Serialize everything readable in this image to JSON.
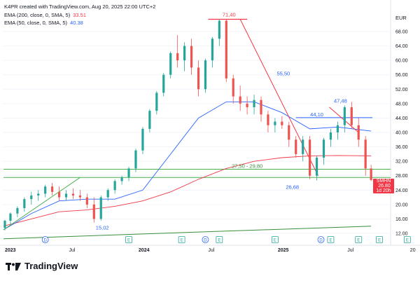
{
  "header": {
    "credit": "K4PR created with TradingView.com, Aug 20, 2025 22:00 UTC+2",
    "ema200_label": "EMA (200, close, 0, SMA, 5)",
    "ema200_value": "33.51",
    "ema50_label": "EMA (50, close, 0, SMA, 5)",
    "ema50_value": "40.38"
  },
  "currency": "EUR",
  "price_badge": {
    "symbol": "SMHN",
    "price": "26.80",
    "countdown": "1d 20h"
  },
  "brand": "TradingView",
  "colors": {
    "up": "#26a69a",
    "down": "#ef5350",
    "ema200": "#f23645",
    "ema50": "#2962ff",
    "trend_red": "#f23645",
    "support_green": "#4caf50",
    "long_ma": "#388e3c"
  },
  "chart_data": {
    "type": "candlestick",
    "currency": "EUR",
    "ylim": [
      10,
      72
    ],
    "y_ticks": [
      "68.00",
      "64.00",
      "60.00",
      "56.00",
      "52.00",
      "48.00",
      "44.00",
      "40.00",
      "36.00",
      "32.00",
      "28.00",
      "24.00",
      "20.00",
      "16.00",
      "12.00"
    ],
    "x_ticks": [
      "2023",
      "Jul",
      "2024",
      "Jul",
      "2025",
      "Jul",
      "20"
    ],
    "annotations": [
      {
        "text": "71,40"
      },
      {
        "text": "55,50"
      },
      {
        "text": "47,48"
      },
      {
        "text": "44,10"
      },
      {
        "text": "27,50 - 29,80"
      },
      {
        "text": "26,68"
      },
      {
        "text": "15,02"
      }
    ],
    "support_zone": [
      27.5,
      29.8
    ],
    "resistance_level": 44.1,
    "top_level": 71.4,
    "events": [
      "D",
      "E",
      "E",
      "D",
      "E",
      "E",
      "D",
      "E",
      "E",
      "E",
      "E"
    ],
    "candles": {
      "t": [
        2023.01,
        2023.05,
        2023.1,
        2023.15,
        2023.2,
        2023.25,
        2023.3,
        2023.35,
        2023.4,
        2023.45,
        2023.5,
        2023.55,
        2023.6,
        2023.65,
        2023.7,
        2023.75,
        2023.8,
        2023.85,
        2023.9,
        2023.95,
        2024.0,
        2024.05,
        2024.1,
        2024.15,
        2024.2,
        2024.25,
        2024.3,
        2024.35,
        2024.4,
        2024.45,
        2024.5,
        2024.55,
        2024.6,
        2024.65,
        2024.7,
        2024.75,
        2024.8,
        2024.85,
        2024.9,
        2024.95,
        2025.0,
        2025.05,
        2025.1,
        2025.15,
        2025.2,
        2025.25,
        2025.3,
        2025.35,
        2025.4,
        2025.45,
        2025.5,
        2025.55,
        2025.6,
        2025.64
      ],
      "o": [
        13.5,
        15.5,
        17.5,
        19.0,
        21.5,
        22.5,
        23.0,
        25.0,
        23.5,
        22.0,
        23.0,
        22.5,
        22.0,
        20.0,
        16.0,
        22.0,
        24.0,
        26.5,
        27.5,
        30.0,
        35.0,
        41.0,
        46.0,
        51.0,
        56.0,
        62.0,
        60.0,
        64.0,
        58.0,
        52.0,
        60.0,
        66.0,
        71.0,
        55.0,
        50.0,
        48.0,
        47.0,
        49.0,
        45.0,
        42.0,
        43.0,
        42.0,
        38.0,
        34.0,
        38.0,
        28.0,
        33.0,
        38.0,
        40.0,
        42.0,
        47.0,
        42.0,
        38.0,
        30.0
      ],
      "h": [
        15.8,
        17.8,
        19.5,
        22.0,
        23.5,
        24.0,
        25.5,
        26.0,
        25.0,
        24.0,
        24.5,
        24.0,
        23.0,
        22.0,
        22.5,
        24.5,
        27.0,
        28.0,
        30.5,
        35.5,
        41.5,
        46.5,
        51.5,
        56.5,
        62.5,
        67.0,
        65.0,
        66.0,
        60.0,
        60.5,
        66.5,
        71.4,
        71.4,
        56.0,
        53.0,
        50.0,
        50.5,
        50.0,
        46.0,
        44.0,
        44.5,
        43.0,
        39.0,
        39.0,
        39.0,
        33.5,
        38.5,
        41.0,
        43.0,
        47.5,
        48.5,
        44.0,
        39.0,
        31.0
      ],
      "l": [
        12.8,
        14.5,
        16.5,
        18.0,
        20.0,
        21.0,
        22.0,
        22.5,
        21.0,
        21.0,
        21.5,
        21.0,
        19.0,
        15.0,
        15.5,
        21.0,
        23.0,
        25.5,
        26.5,
        29.0,
        34.0,
        40.0,
        45.0,
        50.0,
        55.0,
        58.0,
        57.0,
        56.0,
        50.0,
        51.0,
        58.0,
        64.0,
        54.0,
        48.0,
        46.0,
        45.0,
        45.0,
        43.0,
        40.0,
        40.0,
        41.0,
        36.0,
        33.0,
        32.0,
        27.0,
        26.68,
        31.0,
        36.0,
        38.0,
        40.0,
        41.0,
        36.0,
        28.0,
        26.5
      ],
      "c": [
        15.5,
        17.5,
        19.0,
        21.5,
        22.5,
        23.0,
        25.0,
        23.5,
        22.0,
        23.0,
        22.5,
        22.0,
        20.0,
        16.0,
        22.0,
        24.0,
        26.5,
        27.5,
        30.0,
        35.0,
        41.0,
        46.0,
        51.0,
        56.0,
        62.0,
        60.0,
        64.0,
        58.0,
        52.0,
        60.0,
        66.0,
        71.0,
        55.0,
        50.0,
        48.0,
        47.0,
        49.0,
        45.0,
        42.0,
        43.0,
        42.0,
        38.0,
        34.0,
        38.0,
        28.0,
        33.0,
        38.0,
        40.0,
        42.0,
        47.0,
        42.0,
        38.0,
        30.0,
        26.8
      ]
    },
    "ema50": {
      "t": [
        2023.0,
        2023.2,
        2023.4,
        2023.6,
        2023.8,
        2024.0,
        2024.2,
        2024.4,
        2024.6,
        2024.8,
        2025.0,
        2025.2,
        2025.4,
        2025.64
      ],
      "v": [
        13.0,
        17.5,
        21.0,
        21.5,
        21.5,
        24.0,
        34.0,
        44.0,
        48.5,
        48.5,
        45.5,
        41.0,
        41.5,
        40.38
      ]
    },
    "ema200": {
      "t": [
        2023.0,
        2023.2,
        2023.4,
        2023.6,
        2023.8,
        2024.0,
        2024.2,
        2024.4,
        2024.6,
        2024.8,
        2025.0,
        2025.2,
        2025.4,
        2025.64
      ],
      "v": [
        14.0,
        16.0,
        18.0,
        18.5,
        19.5,
        21.0,
        23.5,
        27.0,
        30.0,
        32.0,
        33.0,
        33.5,
        33.6,
        33.51
      ]
    },
    "long_ma": {
      "t": [
        2023.0,
        2025.64
      ],
      "v": [
        10.5,
        14.0
      ]
    }
  }
}
